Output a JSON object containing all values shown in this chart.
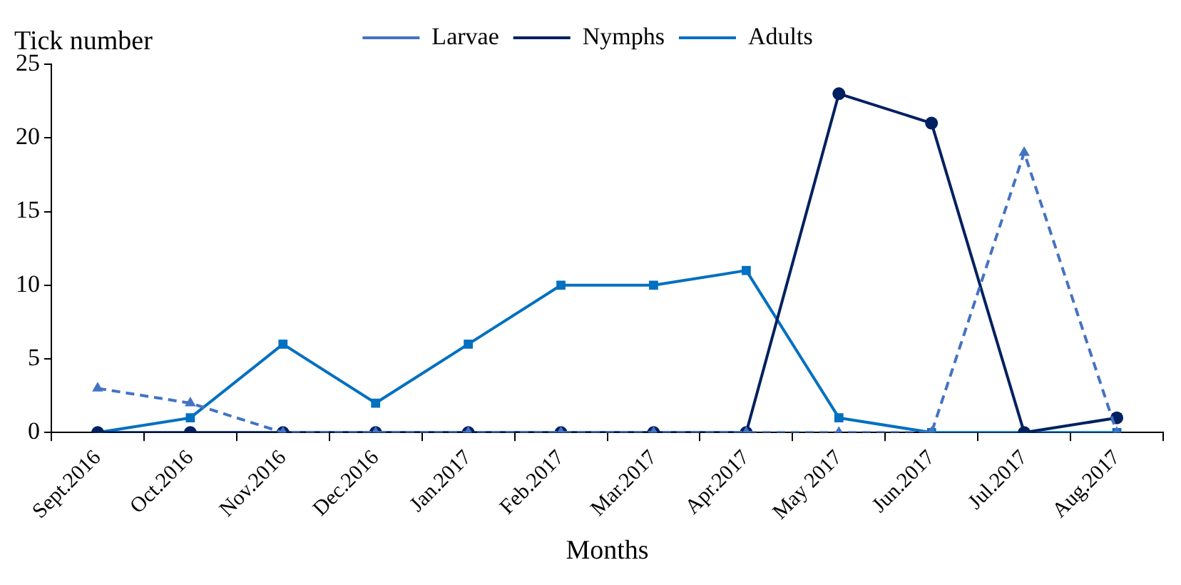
{
  "chart_data": {
    "type": "line",
    "ylabel": "Tick number",
    "xlabel": "Months",
    "categories": [
      "Sept.2016",
      "Oct.2016",
      "Nov.2016",
      "Dec.2016",
      "Jan.2017",
      "Feb.2017",
      "Mar.2017",
      "Apr.2017",
      "May 2017",
      "Jun.2017",
      "Jul.2017",
      "Aug.2017"
    ],
    "series": [
      {
        "name": "Larvae",
        "color": "#4472c4",
        "marker": "triangle",
        "line_style": "dashed",
        "values": [
          3,
          2,
          0,
          0,
          0,
          0,
          0,
          0,
          0,
          0,
          19,
          0
        ]
      },
      {
        "name": "Nymphs",
        "color": "#002060",
        "marker": "circle",
        "line_style": "solid",
        "values": [
          0,
          0,
          0,
          0,
          0,
          0,
          0,
          0,
          23,
          21,
          0,
          1
        ]
      },
      {
        "name": "Adults",
        "color": "#0070c0",
        "marker": "square",
        "line_style": "solid",
        "values": [
          0,
          1,
          6,
          2,
          6,
          10,
          10,
          11,
          1,
          0,
          0,
          0
        ]
      }
    ],
    "ylim": [
      0,
      25
    ],
    "yticks": [
      0,
      5,
      10,
      15,
      20,
      25
    ],
    "grid": false,
    "legend": "top"
  }
}
